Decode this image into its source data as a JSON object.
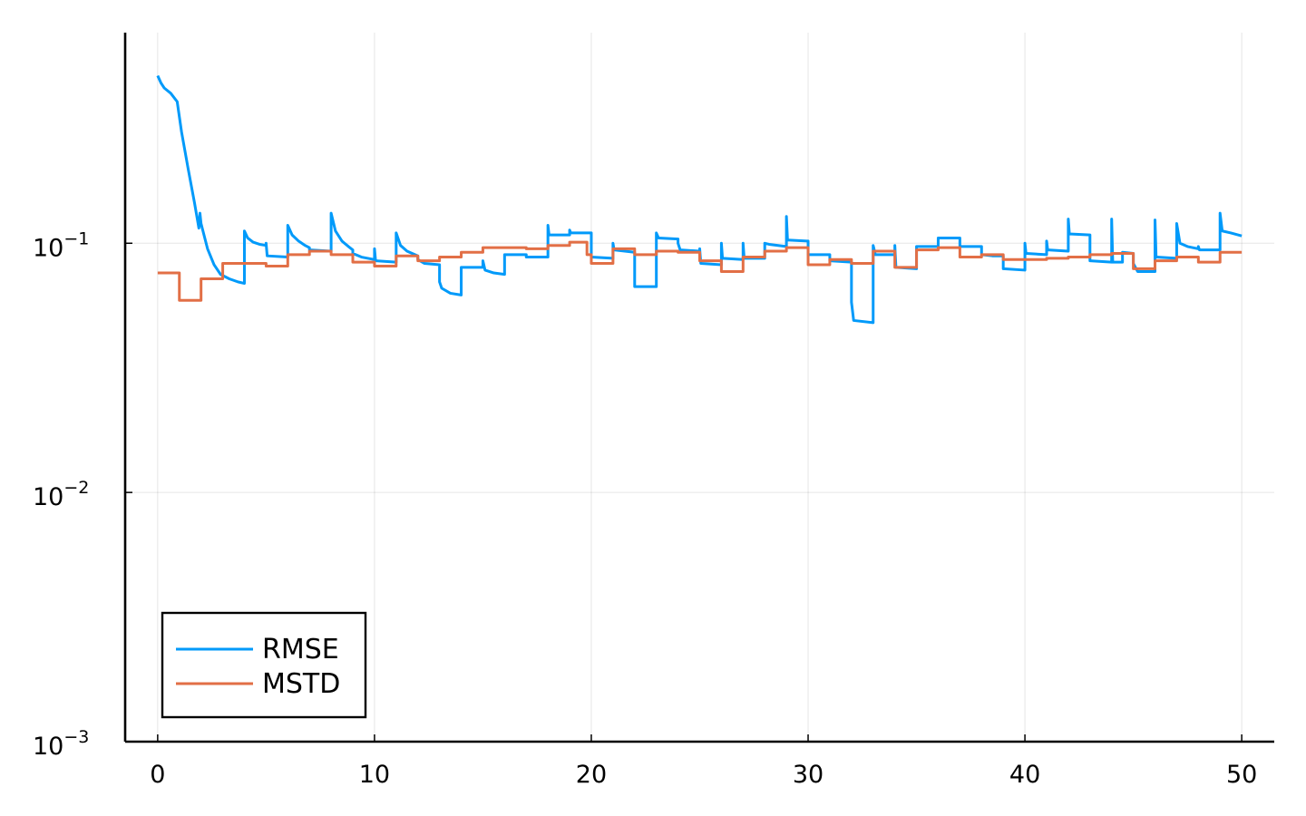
{
  "chart_data": {
    "type": "line",
    "title": "",
    "xlabel": "",
    "ylabel": "",
    "x_scale": "linear",
    "y_scale": "log10",
    "xlim": [
      -1.5,
      51.5
    ],
    "ylim": [
      0.001,
      0.7
    ],
    "x_ticks": [
      0,
      10,
      20,
      30,
      40,
      50
    ],
    "x_tick_labels": [
      "0",
      "10",
      "20",
      "30",
      "40",
      "50"
    ],
    "y_ticks": [
      0.001,
      0.01,
      0.1
    ],
    "y_tick_labels": [
      {
        "base": "10",
        "exp": "−3"
      },
      {
        "base": "10",
        "exp": "−2"
      },
      {
        "base": "10",
        "exp": "−1"
      }
    ],
    "grid": true,
    "legend": {
      "position": "bottom-left"
    },
    "series": [
      {
        "name": "RMSE",
        "color": "#009AFA",
        "points": [
          [
            0,
            0.47
          ],
          [
            0.15,
            0.44
          ],
          [
            0.3,
            0.42
          ],
          [
            0.6,
            0.4
          ],
          [
            0.9,
            0.37
          ],
          [
            1.1,
            0.28
          ],
          [
            1.4,
            0.2
          ],
          [
            1.7,
            0.145
          ],
          [
            1.9,
            0.115
          ],
          [
            1.95,
            0.132
          ],
          [
            2.0,
            0.12
          ],
          [
            2.3,
            0.095
          ],
          [
            2.6,
            0.082
          ],
          [
            2.9,
            0.075
          ],
          [
            3.3,
            0.072
          ],
          [
            3.7,
            0.07
          ],
          [
            4.0,
            0.069
          ],
          [
            4.0,
            0.112
          ],
          [
            4.15,
            0.105
          ],
          [
            4.4,
            0.101
          ],
          [
            4.7,
            0.099
          ],
          [
            5.0,
            0.098
          ],
          [
            5.0,
            0.1
          ],
          [
            5.05,
            0.089
          ],
          [
            6.0,
            0.088
          ],
          [
            6.0,
            0.118
          ],
          [
            6.2,
            0.108
          ],
          [
            6.5,
            0.102
          ],
          [
            6.8,
            0.098
          ],
          [
            7.0,
            0.096
          ],
          [
            7.0,
            0.094
          ],
          [
            8.0,
            0.093
          ],
          [
            8.0,
            0.132
          ],
          [
            8.2,
            0.112
          ],
          [
            8.5,
            0.102
          ],
          [
            8.8,
            0.097
          ],
          [
            9.0,
            0.094
          ],
          [
            9.0,
            0.091
          ],
          [
            9.4,
            0.088
          ],
          [
            10.0,
            0.086
          ],
          [
            10.0,
            0.095
          ],
          [
            10.05,
            0.085
          ],
          [
            11.0,
            0.084
          ],
          [
            11.0,
            0.11
          ],
          [
            11.2,
            0.098
          ],
          [
            11.5,
            0.093
          ],
          [
            12.0,
            0.089
          ],
          [
            12.0,
            0.086
          ],
          [
            12.3,
            0.083
          ],
          [
            13.0,
            0.082
          ],
          [
            13.0,
            0.07
          ],
          [
            13.1,
            0.066
          ],
          [
            13.5,
            0.063
          ],
          [
            14.0,
            0.062
          ],
          [
            14.0,
            0.08
          ],
          [
            15.0,
            0.08
          ],
          [
            15.0,
            0.085
          ],
          [
            15.1,
            0.078
          ],
          [
            15.5,
            0.076
          ],
          [
            16.0,
            0.075
          ],
          [
            16.0,
            0.09
          ],
          [
            17.0,
            0.09
          ],
          [
            17.0,
            0.088
          ],
          [
            18.0,
            0.088
          ],
          [
            18.0,
            0.118
          ],
          [
            18.05,
            0.108
          ],
          [
            19.0,
            0.108
          ],
          [
            19.0,
            0.113
          ],
          [
            19.05,
            0.11
          ],
          [
            20.0,
            0.11
          ],
          [
            20.0,
            0.088
          ],
          [
            21.0,
            0.087
          ],
          [
            21.0,
            0.1
          ],
          [
            21.05,
            0.094
          ],
          [
            22.0,
            0.092
          ],
          [
            22.0,
            0.067
          ],
          [
            23.0,
            0.067
          ],
          [
            23.0,
            0.11
          ],
          [
            23.1,
            0.105
          ],
          [
            24.0,
            0.104
          ],
          [
            24.0,
            0.1
          ],
          [
            24.1,
            0.094
          ],
          [
            25.0,
            0.093
          ],
          [
            25.0,
            0.095
          ],
          [
            25.05,
            0.083
          ],
          [
            26.0,
            0.082
          ],
          [
            26.0,
            0.1
          ],
          [
            26.05,
            0.087
          ],
          [
            27.0,
            0.086
          ],
          [
            27.0,
            0.1
          ],
          [
            27.05,
            0.087
          ],
          [
            28.0,
            0.087
          ],
          [
            28.0,
            0.1
          ],
          [
            28.2,
            0.099
          ],
          [
            29.0,
            0.097
          ],
          [
            29.0,
            0.128
          ],
          [
            29.05,
            0.103
          ],
          [
            30.0,
            0.102
          ],
          [
            30.0,
            0.09
          ],
          [
            31.0,
            0.09
          ],
          [
            31.0,
            0.085
          ],
          [
            32.0,
            0.084
          ],
          [
            32.0,
            0.058
          ],
          [
            32.1,
            0.049
          ],
          [
            33.0,
            0.048
          ],
          [
            33.0,
            0.098
          ],
          [
            33.1,
            0.09
          ],
          [
            34.0,
            0.09
          ],
          [
            34.0,
            0.098
          ],
          [
            34.05,
            0.08
          ],
          [
            35.0,
            0.079
          ],
          [
            35.0,
            0.097
          ],
          [
            35.3,
            0.097
          ],
          [
            36.0,
            0.097
          ],
          [
            36.0,
            0.105
          ],
          [
            37.0,
            0.105
          ],
          [
            37.0,
            0.097
          ],
          [
            38.0,
            0.097
          ],
          [
            38.0,
            0.09
          ],
          [
            38.5,
            0.089
          ],
          [
            39.0,
            0.089
          ],
          [
            39.0,
            0.079
          ],
          [
            40.0,
            0.078
          ],
          [
            40.0,
            0.1
          ],
          [
            40.05,
            0.091
          ],
          [
            41.0,
            0.09
          ],
          [
            41.0,
            0.102
          ],
          [
            41.05,
            0.094
          ],
          [
            42.0,
            0.093
          ],
          [
            42.0,
            0.125
          ],
          [
            42.05,
            0.109
          ],
          [
            43.0,
            0.108
          ],
          [
            43.0,
            0.085
          ],
          [
            44.0,
            0.084
          ],
          [
            44.0,
            0.125
          ],
          [
            44.05,
            0.084
          ],
          [
            44.5,
            0.084
          ],
          [
            44.5,
            0.092
          ],
          [
            45.0,
            0.091
          ],
          [
            45.0,
            0.083
          ],
          [
            45.2,
            0.077
          ],
          [
            46.0,
            0.077
          ],
          [
            46.0,
            0.124
          ],
          [
            46.05,
            0.088
          ],
          [
            47.0,
            0.087
          ],
          [
            47.0,
            0.12
          ],
          [
            47.15,
            0.1
          ],
          [
            47.5,
            0.097
          ],
          [
            48.0,
            0.095
          ],
          [
            48.0,
            0.097
          ],
          [
            48.05,
            0.094
          ],
          [
            49.0,
            0.094
          ],
          [
            49.0,
            0.132
          ],
          [
            49.1,
            0.112
          ],
          [
            49.5,
            0.11
          ],
          [
            50.0,
            0.107
          ]
        ]
      },
      {
        "name": "MSTD",
        "color": "#E26F46",
        "points": [
          [
            0,
            0.076
          ],
          [
            1,
            0.076
          ],
          [
            1,
            0.059
          ],
          [
            2,
            0.059
          ],
          [
            2,
            0.072
          ],
          [
            3,
            0.072
          ],
          [
            3,
            0.083
          ],
          [
            5,
            0.083
          ],
          [
            5,
            0.081
          ],
          [
            6,
            0.081
          ],
          [
            6,
            0.09
          ],
          [
            7,
            0.09
          ],
          [
            7,
            0.093
          ],
          [
            8,
            0.093
          ],
          [
            8,
            0.09
          ],
          [
            9,
            0.09
          ],
          [
            9,
            0.084
          ],
          [
            10,
            0.084
          ],
          [
            10,
            0.081
          ],
          [
            11,
            0.081
          ],
          [
            11,
            0.089
          ],
          [
            12,
            0.089
          ],
          [
            12,
            0.085
          ],
          [
            13,
            0.085
          ],
          [
            13,
            0.088
          ],
          [
            14,
            0.088
          ],
          [
            14,
            0.092
          ],
          [
            15,
            0.092
          ],
          [
            15,
            0.096
          ],
          [
            17,
            0.096
          ],
          [
            17,
            0.095
          ],
          [
            18,
            0.095
          ],
          [
            18,
            0.098
          ],
          [
            19,
            0.098
          ],
          [
            19,
            0.101
          ],
          [
            19.8,
            0.101
          ],
          [
            19.8,
            0.09
          ],
          [
            20,
            0.09
          ],
          [
            20,
            0.083
          ],
          [
            21,
            0.083
          ],
          [
            21,
            0.095
          ],
          [
            22,
            0.095
          ],
          [
            22,
            0.09
          ],
          [
            23,
            0.09
          ],
          [
            23,
            0.093
          ],
          [
            24,
            0.093
          ],
          [
            24,
            0.092
          ],
          [
            25,
            0.092
          ],
          [
            25,
            0.085
          ],
          [
            26,
            0.085
          ],
          [
            26,
            0.077
          ],
          [
            27,
            0.077
          ],
          [
            27,
            0.088
          ],
          [
            28,
            0.088
          ],
          [
            28,
            0.093
          ],
          [
            29,
            0.093
          ],
          [
            29,
            0.096
          ],
          [
            30,
            0.096
          ],
          [
            30,
            0.082
          ],
          [
            31,
            0.082
          ],
          [
            31,
            0.086
          ],
          [
            32,
            0.086
          ],
          [
            32,
            0.083
          ],
          [
            33,
            0.083
          ],
          [
            33,
            0.093
          ],
          [
            34,
            0.093
          ],
          [
            34,
            0.08
          ],
          [
            35,
            0.08
          ],
          [
            35,
            0.094
          ],
          [
            36,
            0.094
          ],
          [
            36,
            0.096
          ],
          [
            37,
            0.096
          ],
          [
            37,
            0.088
          ],
          [
            38,
            0.088
          ],
          [
            38,
            0.09
          ],
          [
            39,
            0.09
          ],
          [
            39,
            0.086
          ],
          [
            41,
            0.086
          ],
          [
            41,
            0.087
          ],
          [
            42,
            0.087
          ],
          [
            42,
            0.088
          ],
          [
            43,
            0.088
          ],
          [
            43,
            0.09
          ],
          [
            44,
            0.09
          ],
          [
            44,
            0.091
          ],
          [
            45,
            0.091
          ],
          [
            45,
            0.079
          ],
          [
            46,
            0.079
          ],
          [
            46,
            0.085
          ],
          [
            47,
            0.085
          ],
          [
            47,
            0.088
          ],
          [
            48,
            0.088
          ],
          [
            48,
            0.084
          ],
          [
            49,
            0.084
          ],
          [
            49,
            0.092
          ],
          [
            50,
            0.092
          ]
        ]
      }
    ]
  }
}
